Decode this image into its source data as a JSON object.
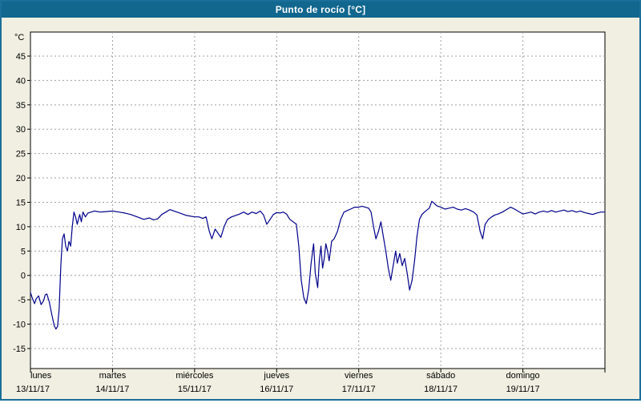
{
  "window": {
    "title": "Punto de rocío [°C]"
  },
  "colors": {
    "frame": "#1b6f99",
    "title_bg": "#11678e",
    "title_text": "#ffffff",
    "background": "#f0efe2",
    "plot_bg": "#ffffff",
    "plot_border": "#000000",
    "grid": "#a0a0a0",
    "line": "#00008c",
    "axis_text": "#000000"
  },
  "chart_data": {
    "type": "line",
    "title": "Punto de rocío [°C]",
    "ylabel": "°C",
    "ylim": [
      -19,
      50
    ],
    "yticks": [
      45,
      40,
      35,
      30,
      25,
      20,
      15,
      10,
      5,
      0,
      -5,
      -10,
      -15
    ],
    "xlim_days": [
      0,
      7
    ],
    "grid": "dashed",
    "legend": "none",
    "x_axis_labels": [
      {
        "day": "lunes",
        "date": "13/11/17"
      },
      {
        "day": "martes",
        "date": "14/11/17"
      },
      {
        "day": "miércoles",
        "date": "15/11/17"
      },
      {
        "day": "jueves",
        "date": "16/11/17"
      },
      {
        "day": "viernes",
        "date": "17/11/17"
      },
      {
        "day": "sábado",
        "date": "18/11/17"
      },
      {
        "day": "domingo",
        "date": "19/11/17"
      }
    ],
    "series": [
      {
        "name": "Punto de rocío",
        "color": "#00008c",
        "points": [
          [
            0.0,
            -3.5
          ],
          [
            0.02,
            -4.5
          ],
          [
            0.05,
            -5.8
          ],
          [
            0.07,
            -4.8
          ],
          [
            0.1,
            -4.2
          ],
          [
            0.13,
            -6.0
          ],
          [
            0.16,
            -5.2
          ],
          [
            0.18,
            -4.0
          ],
          [
            0.2,
            -3.8
          ],
          [
            0.23,
            -5.5
          ],
          [
            0.26,
            -8.0
          ],
          [
            0.29,
            -10.3
          ],
          [
            0.31,
            -11.0
          ],
          [
            0.33,
            -10.5
          ],
          [
            0.35,
            -7.0
          ],
          [
            0.37,
            2.0
          ],
          [
            0.39,
            7.5
          ],
          [
            0.41,
            8.5
          ],
          [
            0.43,
            6.0
          ],
          [
            0.45,
            5.0
          ],
          [
            0.47,
            7.0
          ],
          [
            0.49,
            6.0
          ],
          [
            0.51,
            10.0
          ],
          [
            0.53,
            13.0
          ],
          [
            0.55,
            12.0
          ],
          [
            0.57,
            10.5
          ],
          [
            0.6,
            12.5
          ],
          [
            0.62,
            11.0
          ],
          [
            0.64,
            13.0
          ],
          [
            0.67,
            12.0
          ],
          [
            0.7,
            12.8
          ],
          [
            0.74,
            13.0
          ],
          [
            0.78,
            13.2
          ],
          [
            0.85,
            13.0
          ],
          [
            0.92,
            13.1
          ],
          [
            1.0,
            13.2
          ],
          [
            1.08,
            13.0
          ],
          [
            1.15,
            12.8
          ],
          [
            1.22,
            12.5
          ],
          [
            1.3,
            12.0
          ],
          [
            1.38,
            11.5
          ],
          [
            1.45,
            11.8
          ],
          [
            1.5,
            11.4
          ],
          [
            1.55,
            11.6
          ],
          [
            1.6,
            12.5
          ],
          [
            1.65,
            13.0
          ],
          [
            1.7,
            13.5
          ],
          [
            1.75,
            13.2
          ],
          [
            1.82,
            12.8
          ],
          [
            1.9,
            12.3
          ],
          [
            2.0,
            12.0
          ],
          [
            2.05,
            12.0
          ],
          [
            2.1,
            11.7
          ],
          [
            2.14,
            12.0
          ],
          [
            2.18,
            9.0
          ],
          [
            2.21,
            7.5
          ],
          [
            2.25,
            9.5
          ],
          [
            2.28,
            8.8
          ],
          [
            2.32,
            7.8
          ],
          [
            2.36,
            10.0
          ],
          [
            2.4,
            11.5
          ],
          [
            2.45,
            12.0
          ],
          [
            2.5,
            12.3
          ],
          [
            2.55,
            12.6
          ],
          [
            2.6,
            13.0
          ],
          [
            2.65,
            12.5
          ],
          [
            2.7,
            13.0
          ],
          [
            2.75,
            12.7
          ],
          [
            2.8,
            13.2
          ],
          [
            2.84,
            12.4
          ],
          [
            2.88,
            10.5
          ],
          [
            2.92,
            11.5
          ],
          [
            2.96,
            12.5
          ],
          [
            3.0,
            12.9
          ],
          [
            3.04,
            12.8
          ],
          [
            3.08,
            13.0
          ],
          [
            3.12,
            12.6
          ],
          [
            3.16,
            11.5
          ],
          [
            3.2,
            11.0
          ],
          [
            3.24,
            10.5
          ],
          [
            3.27,
            6.0
          ],
          [
            3.3,
            -1.0
          ],
          [
            3.33,
            -4.5
          ],
          [
            3.36,
            -5.8
          ],
          [
            3.39,
            -3.0
          ],
          [
            3.42,
            2.5
          ],
          [
            3.45,
            6.5
          ],
          [
            3.47,
            0.5
          ],
          [
            3.5,
            -2.5
          ],
          [
            3.52,
            3.0
          ],
          [
            3.54,
            6.0
          ],
          [
            3.56,
            1.5
          ],
          [
            3.58,
            3.5
          ],
          [
            3.6,
            6.5
          ],
          [
            3.62,
            5.0
          ],
          [
            3.64,
            3.0
          ],
          [
            3.67,
            7.0
          ],
          [
            3.7,
            7.5
          ],
          [
            3.74,
            9.0
          ],
          [
            3.78,
            11.5
          ],
          [
            3.82,
            13.0
          ],
          [
            3.86,
            13.3
          ],
          [
            3.9,
            13.6
          ],
          [
            3.95,
            14.0
          ],
          [
            4.0,
            14.0
          ],
          [
            4.04,
            14.2
          ],
          [
            4.08,
            14.0
          ],
          [
            4.12,
            13.8
          ],
          [
            4.15,
            13.0
          ],
          [
            4.18,
            10.0
          ],
          [
            4.21,
            7.5
          ],
          [
            4.24,
            9.0
          ],
          [
            4.27,
            11.0
          ],
          [
            4.3,
            8.0
          ],
          [
            4.33,
            5.0
          ],
          [
            4.36,
            1.5
          ],
          [
            4.39,
            -1.0
          ],
          [
            4.42,
            2.0
          ],
          [
            4.45,
            5.0
          ],
          [
            4.47,
            2.5
          ],
          [
            4.5,
            4.5
          ],
          [
            4.53,
            2.0
          ],
          [
            4.56,
            3.5
          ],
          [
            4.59,
            0.5
          ],
          [
            4.62,
            -3.0
          ],
          [
            4.65,
            -1.0
          ],
          [
            4.68,
            3.0
          ],
          [
            4.71,
            8.0
          ],
          [
            4.74,
            11.5
          ],
          [
            4.77,
            12.5
          ],
          [
            4.8,
            13.0
          ],
          [
            4.83,
            13.4
          ],
          [
            4.86,
            13.8
          ],
          [
            4.89,
            15.2
          ],
          [
            4.92,
            14.8
          ],
          [
            4.95,
            14.3
          ],
          [
            5.0,
            14.0
          ],
          [
            5.05,
            13.6
          ],
          [
            5.1,
            13.8
          ],
          [
            5.15,
            14.0
          ],
          [
            5.2,
            13.6
          ],
          [
            5.25,
            13.4
          ],
          [
            5.3,
            13.7
          ],
          [
            5.35,
            13.4
          ],
          [
            5.4,
            13.0
          ],
          [
            5.44,
            12.4
          ],
          [
            5.48,
            9.0
          ],
          [
            5.51,
            7.5
          ],
          [
            5.54,
            10.5
          ],
          [
            5.58,
            11.5
          ],
          [
            5.62,
            12.0
          ],
          [
            5.66,
            12.4
          ],
          [
            5.7,
            12.6
          ],
          [
            5.75,
            13.0
          ],
          [
            5.8,
            13.5
          ],
          [
            5.85,
            14.0
          ],
          [
            5.9,
            13.6
          ],
          [
            5.95,
            13.1
          ],
          [
            6.0,
            12.6
          ],
          [
            6.05,
            12.8
          ],
          [
            6.1,
            13.0
          ],
          [
            6.15,
            12.6
          ],
          [
            6.2,
            13.0
          ],
          [
            6.25,
            13.2
          ],
          [
            6.3,
            13.0
          ],
          [
            6.35,
            13.3
          ],
          [
            6.4,
            13.0
          ],
          [
            6.45,
            13.2
          ],
          [
            6.5,
            13.4
          ],
          [
            6.55,
            13.1
          ],
          [
            6.6,
            13.3
          ],
          [
            6.65,
            13.0
          ],
          [
            6.7,
            13.2
          ],
          [
            6.75,
            12.9
          ],
          [
            6.8,
            12.7
          ],
          [
            6.85,
            12.5
          ],
          [
            6.9,
            12.8
          ],
          [
            6.95,
            13.0
          ],
          [
            7.0,
            13.0
          ]
        ]
      }
    ]
  }
}
